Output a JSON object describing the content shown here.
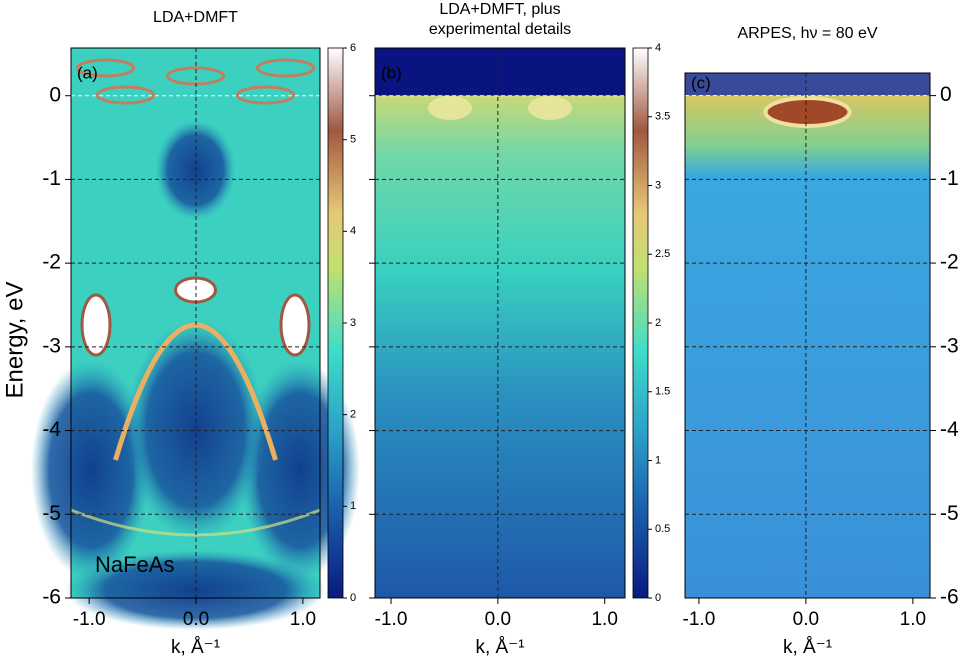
{
  "chart_data": [
    {
      "type": "heatmap",
      "title": [
        "LDA+DMFT"
      ],
      "panel_label": "(a)",
      "annotation": "NaFeAs",
      "xlabel": "k, Å⁻¹",
      "ylabel": "Energy, eV",
      "xlim": [
        -1.17,
        1.16
      ],
      "xticks": [
        {
          "value": -1,
          "label": "-1.0"
        },
        {
          "value": 0,
          "label": "0.0"
        },
        {
          "value": 1,
          "label": "1.0"
        }
      ],
      "ylim": [
        -6,
        0.57
      ],
      "yticks": [
        0,
        -1,
        -2,
        -3,
        -4,
        -5,
        -6
      ],
      "clim": [
        0,
        6
      ],
      "cticks": [
        0,
        1,
        2,
        3,
        4,
        5,
        6
      ],
      "grid": true
    },
    {
      "type": "heatmap",
      "title": [
        "LDA+DMFT, plus",
        "experimental details"
      ],
      "panel_label": "(b)",
      "xlabel": "k, Å⁻¹",
      "xlim": [
        -1.15,
        1.19
      ],
      "xticks": [
        {
          "value": -1,
          "label": "-1.0"
        },
        {
          "value": 0,
          "label": "0.0"
        },
        {
          "value": 1,
          "label": "1.0"
        }
      ],
      "ylim": [
        -6,
        0.57
      ],
      "yticks": [
        0,
        -1,
        -2,
        -3,
        -4,
        -5,
        -6
      ],
      "clim": [
        0,
        4
      ],
      "cticks": [
        0,
        0.5,
        1,
        1.5,
        2,
        2.5,
        3,
        3.5,
        4
      ],
      "grid": true
    },
    {
      "type": "heatmap",
      "title": [
        "ARPES, hν = 80 eV"
      ],
      "panel_label": "(c)",
      "xlabel": "k, Å⁻¹",
      "xlim": [
        -1.13,
        1.16
      ],
      "xticks": [
        {
          "value": -1,
          "label": "-1.0"
        },
        {
          "value": 0,
          "label": "0.0"
        },
        {
          "value": 1,
          "label": "1.0"
        }
      ],
      "ylim": [
        -6,
        0.27
      ],
      "yticks": [
        0,
        -1,
        -2,
        -3,
        -4,
        -5,
        -6
      ],
      "grid": true
    }
  ]
}
